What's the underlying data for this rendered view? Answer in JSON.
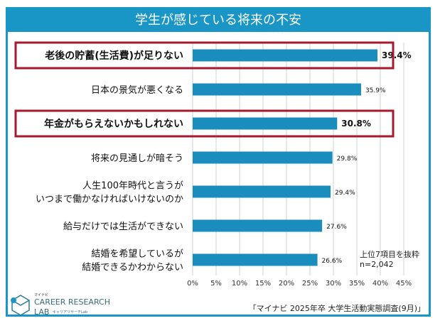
{
  "chart_data": {
    "type": "bar",
    "orientation": "horizontal",
    "title": "学生が感じている将来の不安",
    "categories": [
      "老後の貯蓄(生活費)が足りない",
      "日本の景気が悪くなる",
      "年金がもらえないかもしれない",
      "将来の見通しが暗そう",
      "人生100年時代と言うが\nいつまで働かなければいけないのか",
      "給与だけでは生活ができない",
      "結婚を希望しているが\n結婚できるかわからない"
    ],
    "values": [
      39.4,
      35.9,
      30.8,
      29.8,
      29.4,
      27.6,
      26.6
    ],
    "value_labels": [
      "39.4%",
      "35.9%",
      "30.8%",
      "29.8%",
      "29.4%",
      "27.6%",
      "26.6%"
    ],
    "highlighted": [
      0,
      2
    ],
    "xlim": [
      0,
      45
    ],
    "xticks": [
      "0%",
      "5%",
      "10%",
      "15%",
      "20%",
      "25%",
      "30%",
      "35%",
      "40%",
      "45%"
    ],
    "grid": true,
    "bar_color": "#1a8dbd",
    "highlight_color": "#a6192e",
    "title_bar_color": "#1a96c6"
  },
  "note": {
    "line1": "上位7項目を抜粋",
    "line2": "n=2,042"
  },
  "source": "「マイナビ 2025年卒 大学生活動実態調査(9月)」",
  "logo": {
    "brand": "マイナビ",
    "name1": "CAREER RESEARCH",
    "name2": "LAB",
    "sub": "キャリアリサーチLab"
  }
}
